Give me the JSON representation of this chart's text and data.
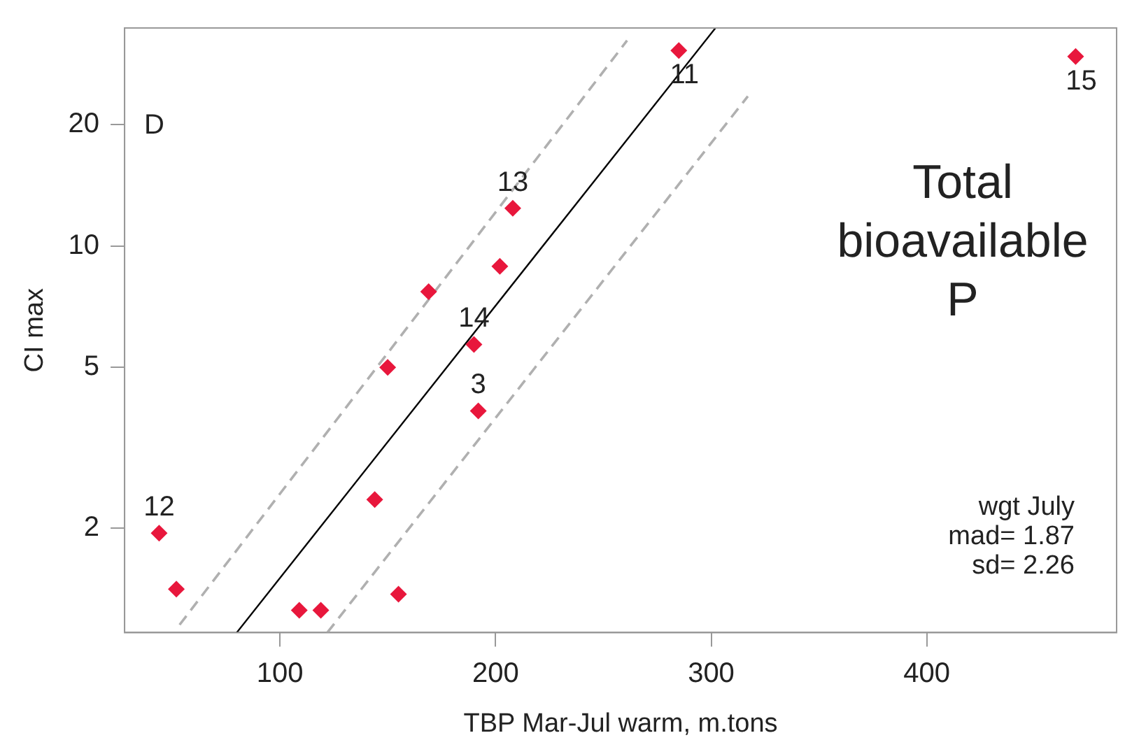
{
  "chart_data": {
    "type": "scatter",
    "xlabel": "TBP Mar-Jul warm, m.tons",
    "ylabel": "CI max",
    "log": "y",
    "xlim": [
      28,
      488
    ],
    "xticks": [
      100,
      200,
      300,
      400
    ],
    "ylim": [
      1.1,
      34.7
    ],
    "yticks": [
      2,
      5,
      10,
      20
    ],
    "grid": false,
    "legend": false,
    "marker": "diamond",
    "series": [
      {
        "type": "scatter",
        "color": "#e8173c",
        "x": [
          285,
          208,
          202,
          169,
          190,
          150,
          192,
          144,
          44,
          52,
          109,
          119,
          155,
          469
        ],
        "values": [
          30.5,
          12.4,
          8.9,
          7.7,
          5.7,
          5.0,
          3.9,
          2.35,
          1.94,
          1.41,
          1.25,
          1.25,
          1.37,
          29.5
        ]
      },
      {
        "type": "line",
        "color": "#000000",
        "line_style": "solid",
        "marker": "none",
        "x": [
          80,
          302
        ],
        "values": [
          1.1,
          34.7
        ]
      },
      {
        "type": "line",
        "color": "#b0b0b0",
        "line_style": "dashed",
        "marker": "none",
        "x": [
          53.5,
          261
        ],
        "values": [
          1.15,
          32.3
        ]
      },
      {
        "type": "line",
        "color": "#b0b0b0",
        "line_style": "dashed",
        "marker": "none",
        "x": [
          122,
          317
        ],
        "values": [
          1.1,
          23.5
        ]
      }
    ],
    "annotations": [
      "D",
      "Total bioavailable P",
      "wgt July",
      "mad= 1.87",
      "sd= 2.26",
      {
        "text": "11",
        "x": 285,
        "y": 30.5
      },
      {
        "text": "13",
        "x": 208,
        "y": 12.4
      },
      {
        "text": "14",
        "x": 190,
        "y": 5.7
      },
      {
        "text": "3",
        "x": 192,
        "y": 3.9
      },
      {
        "text": "12",
        "x": 44,
        "y": 1.94
      },
      {
        "text": "15",
        "x": 469,
        "y": 29.5
      }
    ]
  }
}
